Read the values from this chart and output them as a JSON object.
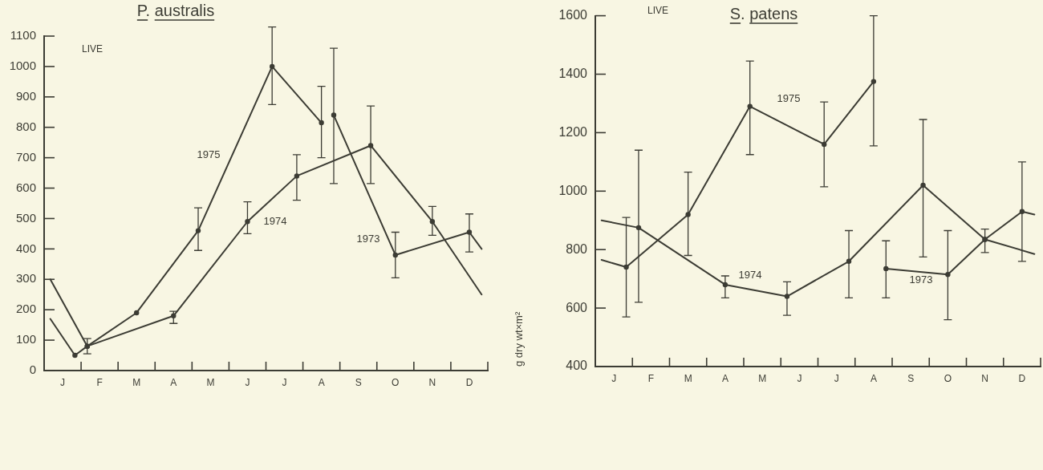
{
  "chart_data": [
    {
      "type": "line",
      "title": "P. australis",
      "annotations": [
        "LIVE"
      ],
      "categories": [
        null,
        "J",
        null,
        null,
        "F",
        null,
        null,
        "M",
        null,
        null,
        "A",
        null,
        null,
        "M",
        null,
        null,
        "J",
        null,
        null,
        "J",
        null,
        null,
        "A",
        null,
        null,
        "S",
        null,
        null,
        "O",
        null,
        null,
        "N",
        null,
        null,
        "D",
        null
      ],
      "ylim": [
        0,
        1100
      ],
      "yticks": [
        0,
        100,
        200,
        300,
        400,
        500,
        600,
        700,
        800,
        900,
        1000,
        1100
      ],
      "marker": "circle",
      "series": [
        {
          "name": "1975",
          "color": "#3c3c34",
          "values": [
            170,
            null,
            50,
            80,
            null,
            null,
            null,
            190,
            null,
            null,
            null,
            null,
            460,
            null,
            null,
            null,
            null,
            null,
            1000,
            null,
            null,
            null,
            815,
            null,
            null,
            null,
            null,
            null,
            null,
            null,
            null,
            null,
            null,
            null,
            null,
            null
          ],
          "errors": [
            null,
            null,
            null,
            null,
            null,
            null,
            null,
            null,
            null,
            null,
            null,
            null,
            [
              395,
              535
            ],
            null,
            null,
            null,
            null,
            null,
            [
              875,
              1130
            ],
            null,
            null,
            null,
            [
              700,
              935
            ],
            null,
            null,
            null,
            null,
            null,
            null,
            null,
            null,
            null,
            null,
            null,
            null,
            null
          ]
        },
        {
          "name": "1974",
          "color": "#3c3c34",
          "values": [
            300,
            null,
            null,
            80,
            null,
            null,
            null,
            null,
            null,
            null,
            180,
            null,
            null,
            null,
            null,
            null,
            490,
            null,
            null,
            null,
            640,
            null,
            null,
            null,
            null,
            null,
            740,
            null,
            null,
            null,
            null,
            490,
            null,
            null,
            null,
            250
          ],
          "errors": [
            null,
            null,
            null,
            [
              55,
              105
            ],
            null,
            null,
            null,
            null,
            null,
            null,
            [
              155,
              195
            ],
            null,
            null,
            null,
            null,
            null,
            [
              450,
              555
            ],
            null,
            null,
            null,
            [
              560,
              710
            ],
            null,
            null,
            null,
            null,
            null,
            [
              615,
              870
            ],
            null,
            null,
            null,
            null,
            [
              445,
              540
            ],
            null,
            null,
            null,
            null
          ]
        },
        {
          "name": "1973",
          "color": "#3c3c34",
          "values": [
            null,
            null,
            null,
            null,
            null,
            null,
            null,
            null,
            null,
            null,
            null,
            null,
            null,
            null,
            null,
            null,
            null,
            null,
            null,
            null,
            null,
            null,
            null,
            840,
            null,
            null,
            null,
            null,
            380,
            null,
            null,
            null,
            null,
            null,
            455,
            400
          ],
          "errors": [
            null,
            null,
            null,
            null,
            null,
            null,
            null,
            null,
            null,
            null,
            null,
            null,
            null,
            null,
            null,
            null,
            null,
            null,
            null,
            null,
            null,
            null,
            null,
            [
              615,
              1060
            ],
            null,
            null,
            null,
            null,
            [
              305,
              455
            ],
            null,
            null,
            null,
            null,
            null,
            [
              390,
              515
            ],
            null
          ]
        }
      ]
    },
    {
      "type": "line",
      "title": "S. patens",
      "ylabel": "g dry wt×m²",
      "annotations": [
        "LIVE"
      ],
      "categories": [
        null,
        "J",
        null,
        null,
        "F",
        null,
        null,
        "M",
        null,
        null,
        "A",
        null,
        null,
        "M",
        null,
        null,
        "J",
        null,
        null,
        "J",
        null,
        null,
        "A",
        null,
        null,
        "S",
        null,
        null,
        "O",
        null,
        null,
        "N",
        null,
        null,
        "D",
        null
      ],
      "ylim": [
        400,
        1600
      ],
      "yticks": [
        400,
        600,
        800,
        1000,
        1200,
        1400,
        1600
      ],
      "marker": "circle",
      "series": [
        {
          "name": "1975",
          "color": "#3c3c34",
          "values": [
            765,
            null,
            740,
            null,
            null,
            null,
            null,
            920,
            null,
            null,
            null,
            null,
            1290,
            null,
            null,
            null,
            null,
            null,
            1160,
            null,
            null,
            null,
            1375,
            null,
            null,
            null,
            null,
            null,
            null,
            null,
            null,
            null,
            null,
            null,
            null,
            null
          ],
          "errors": [
            null,
            null,
            [
              570,
              910
            ],
            null,
            null,
            null,
            null,
            [
              780,
              1065
            ],
            null,
            null,
            null,
            null,
            [
              1125,
              1445
            ],
            null,
            null,
            null,
            null,
            null,
            [
              1015,
              1305
            ],
            null,
            null,
            null,
            [
              1155,
              1600
            ],
            null,
            null,
            null,
            null,
            null,
            null,
            null,
            null,
            null,
            null,
            null,
            null,
            null
          ]
        },
        {
          "name": "1974",
          "color": "#3c3c34",
          "values": [
            900,
            null,
            null,
            875,
            null,
            null,
            null,
            null,
            null,
            null,
            680,
            null,
            null,
            null,
            null,
            640,
            null,
            null,
            null,
            null,
            760,
            null,
            null,
            null,
            null,
            null,
            1020,
            null,
            null,
            null,
            null,
            835,
            null,
            null,
            null,
            785
          ],
          "errors": [
            null,
            null,
            null,
            [
              620,
              1140
            ],
            null,
            null,
            null,
            null,
            null,
            null,
            [
              635,
              710
            ],
            null,
            null,
            null,
            null,
            [
              575,
              690
            ],
            null,
            null,
            null,
            null,
            [
              635,
              865
            ],
            null,
            null,
            null,
            null,
            null,
            [
              775,
              1245
            ],
            null,
            null,
            null,
            null,
            [
              790,
              870
            ],
            null,
            null,
            null,
            null
          ]
        },
        {
          "name": "1973",
          "color": "#3c3c34",
          "values": [
            null,
            null,
            null,
            null,
            null,
            null,
            null,
            null,
            null,
            null,
            null,
            null,
            null,
            null,
            null,
            null,
            null,
            null,
            null,
            null,
            null,
            null,
            null,
            735,
            null,
            null,
            null,
            null,
            715,
            null,
            null,
            835,
            null,
            null,
            930,
            920
          ],
          "errors": [
            null,
            null,
            null,
            null,
            null,
            null,
            null,
            null,
            null,
            null,
            null,
            null,
            null,
            null,
            null,
            null,
            null,
            null,
            null,
            null,
            null,
            null,
            null,
            [
              635,
              830
            ],
            null,
            null,
            null,
            null,
            [
              560,
              865
            ],
            null,
            null,
            null,
            null,
            null,
            [
              760,
              1100
            ],
            null
          ]
        }
      ]
    }
  ]
}
